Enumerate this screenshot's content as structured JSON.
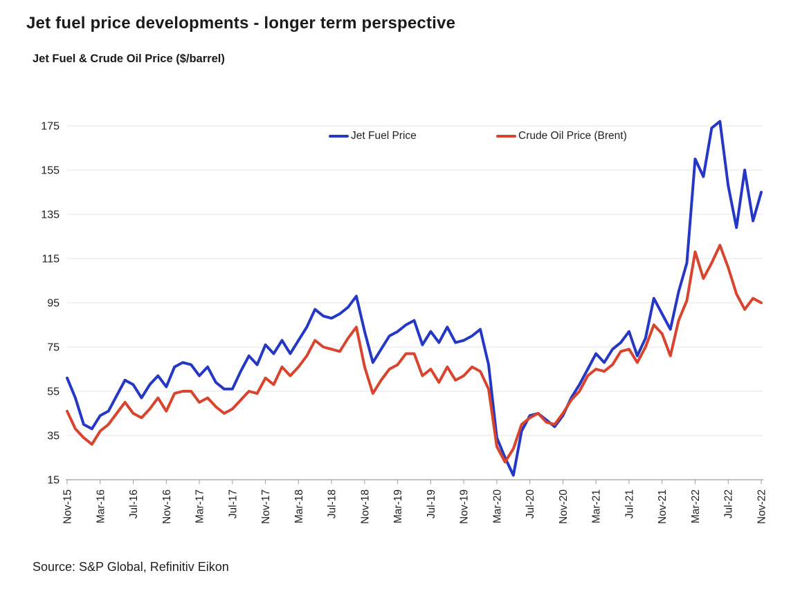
{
  "header": {
    "title": "Jet fuel price developments - longer term perspective",
    "subtitle": "Jet Fuel & Crude Oil Price ($/barrel)"
  },
  "legend": [
    {
      "label": "Jet Fuel Price",
      "color": "#2538c5"
    },
    {
      "label": "Crude Oil Price (Brent)",
      "color": "#d8442e"
    }
  ],
  "source": {
    "text": "Source: S&P Global, Refinitiv Eikon"
  },
  "colors": {
    "jet_fuel_line": "#2538c5",
    "crude_oil_line": "#d8442e",
    "gridline": "#e4e4e4",
    "axis": "#9f9f9f",
    "tick_text": "#1f1f1f"
  },
  "chart_data": {
    "type": "line",
    "title": "Jet fuel price developments - longer term perspective",
    "ylabel": "Jet Fuel & Crude Oil Price ($/barrel)",
    "x_start": "Nov-15",
    "x_end": "Nov-22",
    "x_step_months": 1,
    "x_tick_every_months": 4,
    "x_tick_labels": [
      "Nov-15",
      "Mar-16",
      "Jul-16",
      "Nov-16",
      "Mar-17",
      "Jul-17",
      "Nov-17",
      "Mar-18",
      "Jul-18",
      "Nov-18",
      "Mar-19",
      "Jul-19",
      "Nov-19",
      "Mar-20",
      "Jul-20",
      "Nov-20",
      "Mar-21",
      "Jul-21",
      "Nov-21",
      "Mar-22",
      "Jul-22",
      "Nov-22"
    ],
    "ylim": [
      15,
      175
    ],
    "y_ticks": [
      15,
      35,
      55,
      75,
      95,
      115,
      135,
      155,
      175
    ],
    "grid": "horizontal",
    "legend_position": "top-inside",
    "series": [
      {
        "name": "Jet Fuel Price",
        "color": "#2538c5",
        "values": [
          61,
          52,
          40,
          38,
          44,
          46,
          53,
          60,
          58,
          52,
          58,
          62,
          57,
          66,
          68,
          67,
          62,
          66,
          59,
          56,
          56,
          64,
          71,
          67,
          76,
          72,
          78,
          72,
          78,
          84,
          92,
          89,
          88,
          90,
          93,
          98,
          82,
          68,
          74,
          80,
          82,
          85,
          87,
          76,
          82,
          77,
          84,
          77,
          78,
          80,
          83,
          67,
          34,
          25,
          17,
          37,
          44,
          45,
          42,
          39,
          44,
          52,
          58,
          65,
          72,
          68,
          74,
          77,
          82,
          71,
          79,
          97,
          90,
          83,
          100,
          113,
          160,
          152,
          174,
          177,
          148,
          129,
          155,
          132,
          145
        ]
      },
      {
        "name": "Crude Oil Price (Brent)",
        "color": "#d8442e",
        "values": [
          46,
          38,
          34,
          31,
          37,
          40,
          45,
          50,
          45,
          43,
          47,
          52,
          46,
          54,
          55,
          55,
          50,
          52,
          48,
          45,
          47,
          51,
          55,
          54,
          61,
          58,
          66,
          62,
          66,
          71,
          78,
          75,
          74,
          73,
          79,
          84,
          66,
          54,
          60,
          65,
          67,
          72,
          72,
          62,
          65,
          59,
          66,
          60,
          62,
          66,
          64,
          56,
          30,
          23,
          29,
          40,
          43,
          45,
          41,
          40,
          45,
          51,
          55,
          62,
          65,
          64,
          67,
          73,
          74,
          68,
          75,
          85,
          81,
          71,
          87,
          96,
          118,
          106,
          113,
          121,
          111,
          99,
          92,
          97,
          95
        ]
      }
    ]
  }
}
